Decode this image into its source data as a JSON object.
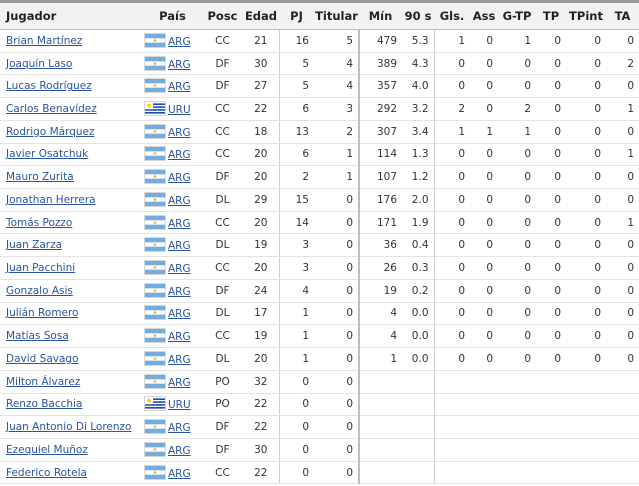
{
  "columns": {
    "player": "Jugador",
    "country": "País",
    "pos": "Posc",
    "age": "Edad",
    "pj": "PJ",
    "starts": "Titular",
    "min": "Mín",
    "n90": "90 s",
    "gls": "Gls.",
    "ast": "Ass",
    "g_tp": "G-TP",
    "tp": "TP",
    "tpint": "TPint",
    "ta": "TA"
  },
  "flags": {
    "ARG": {
      "light": "#74acdf",
      "white": "#ffffff",
      "sun": "#f6b40e"
    },
    "URU": {
      "blue": "#0038a8",
      "white": "#ffffff",
      "sun": "#fcd116"
    }
  },
  "rows": [
    {
      "player": "Brian Martínez",
      "flag": "ARG",
      "country": "ARG",
      "pos": "CC",
      "age": "21",
      "pj": "16",
      "starts": "5",
      "min": "479",
      "n90": "5.3",
      "gls": "1",
      "ast": "0",
      "g_tp": "1",
      "tp": "0",
      "tpint": "0",
      "ta": "0"
    },
    {
      "player": "Joaquín Laso",
      "flag": "ARG",
      "country": "ARG",
      "pos": "DF",
      "age": "30",
      "pj": "5",
      "starts": "4",
      "min": "389",
      "n90": "4.3",
      "gls": "0",
      "ast": "0",
      "g_tp": "0",
      "tp": "0",
      "tpint": "0",
      "ta": "2"
    },
    {
      "player": "Lucas Rodríguez",
      "flag": "ARG",
      "country": "ARG",
      "pos": "DF",
      "age": "27",
      "pj": "5",
      "starts": "4",
      "min": "357",
      "n90": "4.0",
      "gls": "0",
      "ast": "0",
      "g_tp": "0",
      "tp": "0",
      "tpint": "0",
      "ta": "0"
    },
    {
      "player": "Carlos Benavídez",
      "flag": "URU",
      "country": "URU",
      "pos": "CC",
      "age": "22",
      "pj": "6",
      "starts": "3",
      "min": "292",
      "n90": "3.2",
      "gls": "2",
      "ast": "0",
      "g_tp": "2",
      "tp": "0",
      "tpint": "0",
      "ta": "1"
    },
    {
      "player": "Rodrigo Márquez",
      "flag": "ARG",
      "country": "ARG",
      "pos": "CC",
      "age": "18",
      "pj": "13",
      "starts": "2",
      "min": "307",
      "n90": "3.4",
      "gls": "1",
      "ast": "1",
      "g_tp": "1",
      "tp": "0",
      "tpint": "0",
      "ta": "0"
    },
    {
      "player": "Javier Osatchuk",
      "flag": "ARG",
      "country": "ARG",
      "pos": "CC",
      "age": "20",
      "pj": "6",
      "starts": "1",
      "min": "114",
      "n90": "1.3",
      "gls": "0",
      "ast": "0",
      "g_tp": "0",
      "tp": "0",
      "tpint": "0",
      "ta": "1"
    },
    {
      "player": "Mauro Zurita",
      "flag": "ARG",
      "country": "ARG",
      "pos": "DF",
      "age": "20",
      "pj": "2",
      "starts": "1",
      "min": "107",
      "n90": "1.2",
      "gls": "0",
      "ast": "0",
      "g_tp": "0",
      "tp": "0",
      "tpint": "0",
      "ta": "0"
    },
    {
      "player": "Jonathan Herrera",
      "flag": "ARG",
      "country": "ARG",
      "pos": "DL",
      "age": "29",
      "pj": "15",
      "starts": "0",
      "min": "176",
      "n90": "2.0",
      "gls": "0",
      "ast": "0",
      "g_tp": "0",
      "tp": "0",
      "tpint": "0",
      "ta": "0"
    },
    {
      "player": "Tomás Pozzo",
      "flag": "ARG",
      "country": "ARG",
      "pos": "CC",
      "age": "20",
      "pj": "14",
      "starts": "0",
      "min": "171",
      "n90": "1.9",
      "gls": "0",
      "ast": "0",
      "g_tp": "0",
      "tp": "0",
      "tpint": "0",
      "ta": "1"
    },
    {
      "player": "Juan Zarza",
      "flag": "ARG",
      "country": "ARG",
      "pos": "DL",
      "age": "19",
      "pj": "3",
      "starts": "0",
      "min": "36",
      "n90": "0.4",
      "gls": "0",
      "ast": "0",
      "g_tp": "0",
      "tp": "0",
      "tpint": "0",
      "ta": "0"
    },
    {
      "player": "Juan Pacchini",
      "flag": "ARG",
      "country": "ARG",
      "pos": "CC",
      "age": "20",
      "pj": "3",
      "starts": "0",
      "min": "26",
      "n90": "0.3",
      "gls": "0",
      "ast": "0",
      "g_tp": "0",
      "tp": "0",
      "tpint": "0",
      "ta": "0"
    },
    {
      "player": "Gonzalo Asis",
      "flag": "ARG",
      "country": "ARG",
      "pos": "DF",
      "age": "24",
      "pj": "4",
      "starts": "0",
      "min": "19",
      "n90": "0.2",
      "gls": "0",
      "ast": "0",
      "g_tp": "0",
      "tp": "0",
      "tpint": "0",
      "ta": "0"
    },
    {
      "player": "Julián Romero",
      "flag": "ARG",
      "country": "ARG",
      "pos": "DL",
      "age": "17",
      "pj": "1",
      "starts": "0",
      "min": "4",
      "n90": "0.0",
      "gls": "0",
      "ast": "0",
      "g_tp": "0",
      "tp": "0",
      "tpint": "0",
      "ta": "0"
    },
    {
      "player": "Matías Sosa",
      "flag": "ARG",
      "country": "ARG",
      "pos": "CC",
      "age": "19",
      "pj": "1",
      "starts": "0",
      "min": "4",
      "n90": "0.0",
      "gls": "0",
      "ast": "0",
      "g_tp": "0",
      "tp": "0",
      "tpint": "0",
      "ta": "0"
    },
    {
      "player": "David Savago",
      "flag": "ARG",
      "country": "ARG",
      "pos": "DL",
      "age": "20",
      "pj": "1",
      "starts": "0",
      "min": "1",
      "n90": "0.0",
      "gls": "0",
      "ast": "0",
      "g_tp": "0",
      "tp": "0",
      "tpint": "0",
      "ta": "0"
    },
    {
      "player": "Milton Álvarez",
      "flag": "ARG",
      "country": "ARG",
      "pos": "PO",
      "age": "32",
      "pj": "0",
      "starts": "0",
      "min": "",
      "n90": "",
      "gls": "",
      "ast": "",
      "g_tp": "",
      "tp": "",
      "tpint": "",
      "ta": ""
    },
    {
      "player": "Renzo Bacchia",
      "flag": "URU",
      "country": "URU",
      "pos": "PO",
      "age": "22",
      "pj": "0",
      "starts": "0",
      "min": "",
      "n90": "",
      "gls": "",
      "ast": "",
      "g_tp": "",
      "tp": "",
      "tpint": "",
      "ta": ""
    },
    {
      "player": "Juan Antonio Di Lorenzo",
      "flag": "ARG",
      "country": "ARG",
      "pos": "DF",
      "age": "22",
      "pj": "0",
      "starts": "0",
      "min": "",
      "n90": "",
      "gls": "",
      "ast": "",
      "g_tp": "",
      "tp": "",
      "tpint": "",
      "ta": ""
    },
    {
      "player": "Ezequiel Muñoz",
      "flag": "ARG",
      "country": "ARG",
      "pos": "DF",
      "age": "30",
      "pj": "0",
      "starts": "0",
      "min": "",
      "n90": "",
      "gls": "",
      "ast": "",
      "g_tp": "",
      "tp": "",
      "tpint": "",
      "ta": ""
    },
    {
      "player": "Federico Rotela",
      "flag": "ARG",
      "country": "ARG",
      "pos": "CC",
      "age": "22",
      "pj": "0",
      "starts": "0",
      "min": "",
      "n90": "",
      "gls": "",
      "ast": "",
      "g_tp": "",
      "tp": "",
      "tpint": "",
      "ta": ""
    }
  ]
}
